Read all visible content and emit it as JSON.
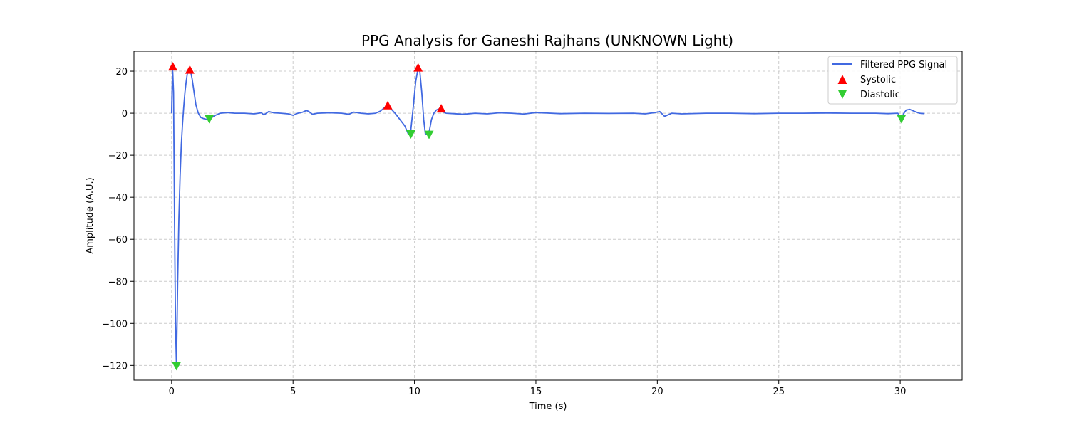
{
  "chart_data": {
    "type": "line",
    "title": "PPG Analysis for Ganeshi Rajhans (UNKNOWN Light)",
    "xlabel": "Time (s)",
    "ylabel": "Amplitude (A.U.)",
    "xlim": [
      -1.55,
      32.55
    ],
    "ylim": [
      -127,
      29.5
    ],
    "xticks": [
      0,
      5,
      10,
      15,
      20,
      25,
      30
    ],
    "yticks": [
      20,
      0,
      -20,
      -40,
      -60,
      -80,
      -100,
      -120
    ],
    "grid": true,
    "legend_position": "top-right",
    "colors": {
      "signal": "#4169e1",
      "systolic": "#ff0000",
      "diastolic": "#32cd32",
      "grid": "#cccccc"
    },
    "series": [
      {
        "name": "Filtered PPG Signal",
        "x": [
          0,
          0.04,
          0.08,
          0.12,
          0.16,
          0.2,
          0.25,
          0.3,
          0.35,
          0.4,
          0.45,
          0.5,
          0.55,
          0.6,
          0.65,
          0.7,
          0.75,
          0.8,
          0.85,
          0.9,
          0.95,
          1.0,
          1.1,
          1.2,
          1.3,
          1.4,
          1.5,
          1.6,
          1.8,
          2.0,
          2.3,
          2.6,
          3.0,
          3.4,
          3.7,
          3.8,
          3.9,
          4.0,
          4.2,
          4.5,
          4.8,
          5.0,
          5.2,
          5.4,
          5.55,
          5.65,
          5.8,
          6.0,
          6.5,
          7.0,
          7.3,
          7.5,
          7.8,
          8.1,
          8.4,
          8.6,
          8.75,
          8.9,
          9.0,
          9.2,
          9.4,
          9.6,
          9.75,
          9.85,
          9.95,
          10.05,
          10.15,
          10.22,
          10.3,
          10.38,
          10.45,
          10.55,
          10.62,
          10.7,
          10.8,
          10.9,
          11.0,
          11.1,
          11.3,
          11.6,
          12.0,
          12.5,
          13.0,
          13.5,
          14.0,
          14.5,
          15.0,
          16.0,
          17.0,
          18.0,
          19.0,
          19.5,
          19.9,
          20.1,
          20.3,
          20.6,
          21.0,
          22.0,
          23.0,
          24.0,
          25.0,
          26.0,
          27.0,
          28.0,
          29.0,
          29.5,
          29.9,
          30.05,
          30.15,
          30.25,
          30.4,
          30.6,
          30.8,
          31.0
        ],
        "y": [
          0,
          22,
          10,
          -50,
          -100,
          -120,
          -80,
          -50,
          -30,
          -15,
          -5,
          3,
          10,
          15,
          19,
          20.5,
          20.5,
          19,
          16,
          12,
          8,
          4,
          0,
          -2,
          -2.5,
          -2.8,
          -3,
          -2.5,
          -1,
          0,
          0.3,
          0,
          0,
          -0.3,
          0.2,
          -0.8,
          0,
          0.8,
          0.2,
          0,
          -0.3,
          -1,
          0,
          0.5,
          1.3,
          0.8,
          -0.5,
          0,
          0.2,
          0,
          -0.5,
          0.5,
          0,
          -0.3,
          0,
          1,
          2.5,
          3.5,
          2.5,
          0,
          -3,
          -6,
          -10,
          -8,
          3,
          15,
          21.5,
          20,
          10,
          -3,
          -10,
          -10,
          -8,
          -3,
          0,
          1.5,
          2,
          1,
          0,
          -0.2,
          -0.5,
          0,
          -0.3,
          0.2,
          0,
          -0.4,
          0.3,
          -0.2,
          0,
          -0.1,
          0,
          -0.3,
          0.3,
          0.8,
          -1.5,
          0,
          -0.3,
          0,
          0,
          -0.2,
          0,
          0,
          0.1,
          0,
          0,
          -0.2,
          0,
          -2.5,
          0,
          1.5,
          1.8,
          0.8,
          0,
          -0.2
        ]
      },
      {
        "name": "Systolic",
        "x": [
          0.05,
          0.75,
          8.9,
          10.15,
          11.1
        ],
        "y": [
          22,
          20.5,
          3.5,
          21.5,
          2
        ]
      },
      {
        "name": "Diastolic",
        "x": [
          0.2,
          1.55,
          9.85,
          10.6,
          30.05
        ],
        "y": [
          -120,
          -2.5,
          -9.8,
          -10,
          -2.5
        ]
      }
    ]
  }
}
